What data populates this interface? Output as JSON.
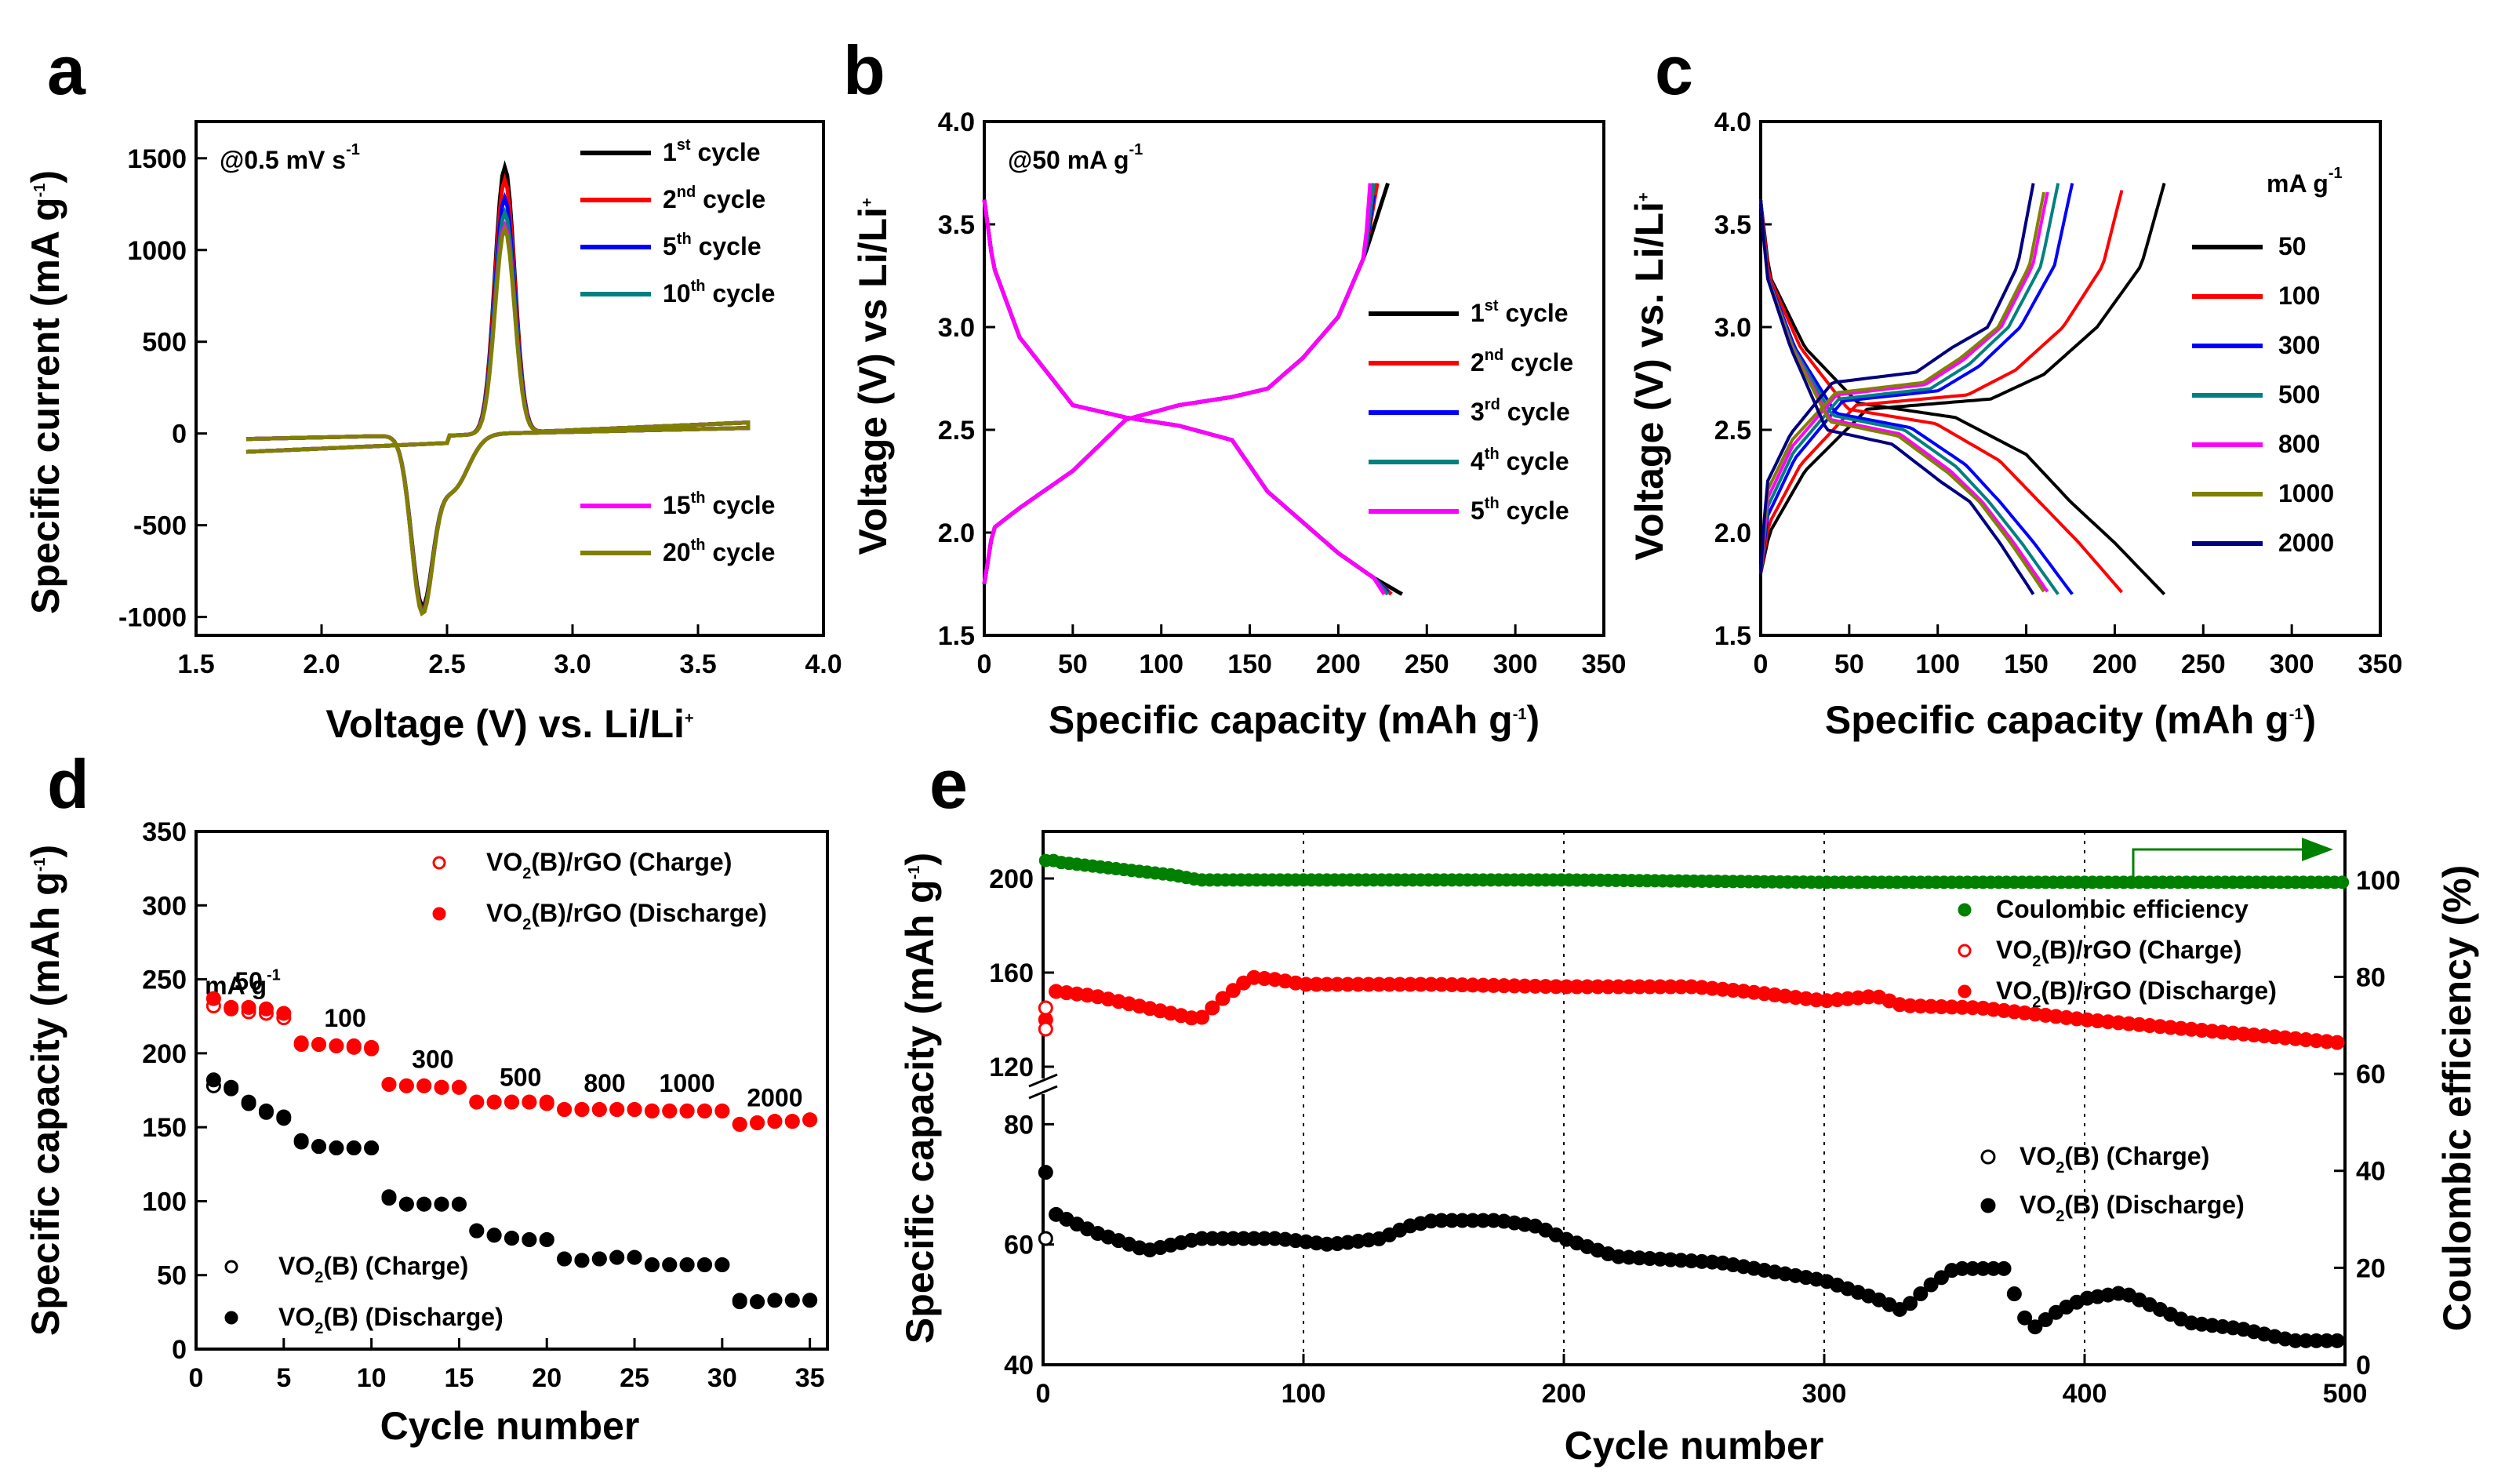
{
  "chart_data": [
    {
      "id": "a",
      "type": "line",
      "panel_label": "a",
      "annotation": "@0.5 mV s",
      "annotation_sup": "-1",
      "xlabel": "Voltage (V) vs. Li/Li",
      "xlabel_sup": "+",
      "ylabel": "Specific current (mA g",
      "ylabel_sup": "-1",
      "ylabel_end": ")",
      "xlim": [
        1.5,
        4.0
      ],
      "ylim": [
        -1100,
        1700
      ],
      "xticks": [
        "1.5",
        "2.0",
        "2.5",
        "3.0",
        "3.5",
        "4.0"
      ],
      "yticks": [
        "-1000",
        "-500",
        "0",
        "500",
        "1000",
        "1500"
      ],
      "series": [
        {
          "name": "1",
          "sup": "st",
          "suffix": " cycle",
          "color": "#000000",
          "peak_ox": 1450,
          "peak_red": -880
        },
        {
          "name": "2",
          "sup": "nd",
          "suffix": " cycle",
          "color": "#ff0000",
          "peak_ox": 1380,
          "peak_red": -900
        },
        {
          "name": "5",
          "sup": "th",
          "suffix": " cycle",
          "color": "#0000ff",
          "peak_ox": 1280,
          "peak_red": -910
        },
        {
          "name": "10",
          "sup": "th",
          "suffix": " cycle",
          "color": "#008080",
          "peak_ox": 1200,
          "peak_red": -910
        },
        {
          "name": "15",
          "sup": "th",
          "suffix": " cycle",
          "color": "#ff00ff",
          "peak_ox": 1130,
          "peak_red": -920
        },
        {
          "name": "20",
          "sup": "th",
          "suffix": " cycle",
          "color": "#808000",
          "peak_ox": 1110,
          "peak_red": -920
        }
      ]
    },
    {
      "id": "b",
      "type": "line",
      "panel_label": "b",
      "annotation": "@50 mA g",
      "annotation_sup": "-1",
      "xlabel": "Specific capacity (mAh g",
      "xlabel_sup": "-1",
      "xlabel_end": ")",
      "ylabel": "Voltage (V) vs Li/Li",
      "ylabel_sup": "+",
      "xlim": [
        0,
        350
      ],
      "ylim": [
        1.5,
        4.0
      ],
      "xticks": [
        "0",
        "50",
        "100",
        "150",
        "200",
        "250",
        "300",
        "350"
      ],
      "yticks": [
        "1.5",
        "2.0",
        "2.5",
        "3.0",
        "3.5",
        "4.0"
      ],
      "series": [
        {
          "name": "1",
          "sup": "st",
          "suffix": " cycle",
          "color": "#000000",
          "cap": 236
        },
        {
          "name": "2",
          "sup": "nd",
          "suffix": " cycle",
          "color": "#ff0000",
          "cap": 230
        },
        {
          "name": "3",
          "sup": "rd",
          "suffix": " cycle",
          "color": "#0000ff",
          "cap": 229
        },
        {
          "name": "4",
          "sup": "th",
          "suffix": " cycle",
          "color": "#008080",
          "cap": 228
        },
        {
          "name": "5",
          "sup": "th",
          "suffix": " cycle",
          "color": "#ff00ff",
          "cap": 226
        }
      ]
    },
    {
      "id": "c",
      "type": "line",
      "panel_label": "c",
      "xlabel": "Specific capacity (mAh g",
      "xlabel_sup": "-1",
      "xlabel_end": ")",
      "ylabel": "Voltage (V) vs. Li/Li",
      "ylabel_sup": "+",
      "xlim": [
        0,
        350
      ],
      "ylim": [
        1.5,
        4.0
      ],
      "xticks": [
        "0",
        "50",
        "100",
        "150",
        "200",
        "250",
        "300",
        "350"
      ],
      "yticks": [
        "1.5",
        "2.0",
        "2.5",
        "3.0",
        "3.5",
        "4.0"
      ],
      "legend_title": "mA g",
      "legend_title_sup": "-1",
      "series": [
        {
          "name": "50",
          "color": "#000000",
          "cap": 228,
          "plateau_d": 2.58,
          "plateau_c": 2.65
        },
        {
          "name": "100",
          "color": "#ff0000",
          "cap": 205,
          "plateau_d": 2.55,
          "plateau_c": 2.67
        },
        {
          "name": "300",
          "color": "#0000ff",
          "cap": 176,
          "plateau_d": 2.53,
          "plateau_c": 2.69
        },
        {
          "name": "500",
          "color": "#008080",
          "cap": 168,
          "plateau_d": 2.52,
          "plateau_c": 2.7
        },
        {
          "name": "800",
          "color": "#ff00ff",
          "cap": 163,
          "plateau_d": 2.5,
          "plateau_c": 2.72
        },
        {
          "name": "1000",
          "color": "#808000",
          "cap": 161,
          "plateau_d": 2.49,
          "plateau_c": 2.73
        },
        {
          "name": "2000",
          "color": "#000080",
          "cap": 154,
          "plateau_d": 2.45,
          "plateau_c": 2.78
        }
      ]
    },
    {
      "id": "d",
      "type": "scatter",
      "panel_label": "d",
      "xlabel": "Cycle number",
      "ylabel": "Specific capacity (mAh g",
      "ylabel_sup": "-1",
      "ylabel_end": ")",
      "xlim": [
        0,
        36
      ],
      "ylim": [
        0,
        350
      ],
      "xticks": [
        "0",
        "5",
        "10",
        "15",
        "20",
        "25",
        "30",
        "35"
      ],
      "yticks": [
        "0",
        "50",
        "100",
        "150",
        "200",
        "250",
        "300",
        "350"
      ],
      "rate_header": "mA g",
      "rate_header_sup": "-1",
      "rate_labels": [
        {
          "text": "50",
          "x": 3.0,
          "y": 243
        },
        {
          "text": "100",
          "x": 8.5,
          "y": 218
        },
        {
          "text": "300",
          "x": 13.5,
          "y": 190
        },
        {
          "text": "500",
          "x": 18.5,
          "y": 178
        },
        {
          "text": "800",
          "x": 23.3,
          "y": 174
        },
        {
          "text": "1000",
          "x": 28.0,
          "y": 174
        },
        {
          "text": "2000",
          "x": 33.0,
          "y": 164
        }
      ],
      "series": [
        {
          "name": "VO2(B)/rGO (Charge)",
          "pre": "VO",
          "sub": "2",
          "post": "(B)/rGO (Charge)",
          "color": "#ff0000",
          "filled": false,
          "values": [
            232,
            230,
            228,
            227,
            224,
            207,
            206,
            205,
            204,
            203,
            179,
            178,
            178,
            177,
            177,
            167,
            167,
            167,
            167,
            166,
            162,
            162,
            162,
            162,
            162,
            161,
            161,
            161,
            161,
            161,
            152,
            153,
            154,
            154,
            155
          ]
        },
        {
          "name": "VO2(B)/rGO (Discharge)",
          "pre": "VO",
          "sub": "2",
          "post": "(B)/rGO (Discharge)",
          "color": "#ff0000",
          "filled": true,
          "values": [
            237,
            231,
            231,
            230,
            227,
            206,
            206,
            205,
            205,
            204,
            179,
            178,
            178,
            177,
            177,
            167,
            167,
            167,
            167,
            167,
            162,
            162,
            162,
            162,
            162,
            161,
            161,
            161,
            161,
            161,
            152,
            153,
            154,
            154,
            155
          ]
        },
        {
          "name": "VO2(B) (Charge)",
          "pre": "VO",
          "sub": "2",
          "post": "(B) (Charge)",
          "color": "#000000",
          "filled": false,
          "values": [
            178,
            176,
            166,
            160,
            156,
            140,
            137,
            136,
            136,
            136,
            102,
            98,
            98,
            98,
            98,
            80,
            77,
            75,
            74,
            74,
            61,
            60,
            61,
            62,
            62,
            57,
            57,
            57,
            57,
            57,
            32,
            32,
            33,
            33,
            33
          ]
        },
        {
          "name": "VO2(B) (Discharge)",
          "pre": "VO",
          "sub": "2",
          "post": "(B) (Discharge)",
          "color": "#000000",
          "filled": true,
          "values": [
            182,
            177,
            167,
            161,
            157,
            141,
            137,
            136,
            136,
            136,
            103,
            98,
            98,
            98,
            98,
            80,
            77,
            75,
            74,
            74,
            61,
            60,
            61,
            62,
            62,
            57,
            57,
            57,
            57,
            57,
            33,
            32,
            33,
            33,
            33
          ]
        }
      ]
    },
    {
      "id": "e",
      "type": "scatter",
      "panel_label": "e",
      "xlabel": "Cycle number",
      "ylabel": "Specific capacity (mAh g",
      "ylabel_sup": "-1",
      "ylabel_end": ")",
      "y2label": "Coulombic efficiency (%)",
      "y2color": "#008000",
      "xlim": [
        0,
        500
      ],
      "xticks": [
        "0",
        "100",
        "200",
        "300",
        "400",
        "500"
      ],
      "ylim_lower": [
        40,
        85
      ],
      "ylim_upper": [
        115,
        220
      ],
      "yticks": [
        "40",
        "60",
        "80",
        "120",
        "160",
        "200"
      ],
      "y2lim": [
        0,
        110
      ],
      "y2ticks": [
        "0",
        "20",
        "40",
        "60",
        "80",
        "100"
      ],
      "legend_upper": [
        {
          "pre": "Coulombic efficiency",
          "sub": "",
          "post": "",
          "color": "#008000",
          "filled": true
        },
        {
          "pre": "VO",
          "sub": "2",
          "post": "(B)/rGO (Charge)",
          "color": "#ff0000",
          "filled": false
        },
        {
          "pre": "VO",
          "sub": "2",
          "post": "(B)/rGO (Discharge)",
          "color": "#ff0000",
          "filled": true
        }
      ],
      "legend_lower": [
        {
          "pre": "VO",
          "sub": "2",
          "post": "(B) (Charge)",
          "color": "#000000",
          "filled": false
        },
        {
          "pre": "VO",
          "sub": "2",
          "post": "(B) (Discharge)",
          "color": "#000000",
          "filled": true
        }
      ],
      "ce_points": {
        "cycles": [
          0,
          50,
          60,
          100,
          200,
          300,
          400,
          500
        ],
        "values": [
          104,
          101,
          100,
          100,
          100,
          99.5,
          99.5,
          99.5
        ]
      },
      "rgo_points": {
        "cycles": [
          1,
          5,
          20,
          40,
          60,
          70,
          80,
          90,
          100,
          150,
          200,
          250,
          270,
          300,
          320,
          330,
          360,
          400,
          450,
          500
        ],
        "values": [
          140,
          152,
          150,
          145,
          140,
          150,
          158,
          157,
          155,
          155,
          154,
          154,
          152,
          148,
          150,
          146,
          145,
          140,
          135,
          130
        ]
      },
      "vo2_points": {
        "cycles": [
          1,
          5,
          20,
          40,
          60,
          90,
          110,
          130,
          140,
          150,
          175,
          190,
          200,
          220,
          260,
          300,
          320,
          330,
          340,
          350,
          370,
          375,
          380,
          390,
          400,
          415,
          425,
          440,
          460,
          480,
          500
        ],
        "values": [
          72,
          65,
          62,
          59,
          61,
          61,
          60,
          61,
          63,
          64,
          64,
          63,
          61,
          58,
          57,
          54,
          51,
          49,
          53,
          56,
          56,
          49,
          46,
          49,
          51,
          52,
          50,
          47,
          46,
          44,
          44
        ]
      }
    }
  ]
}
